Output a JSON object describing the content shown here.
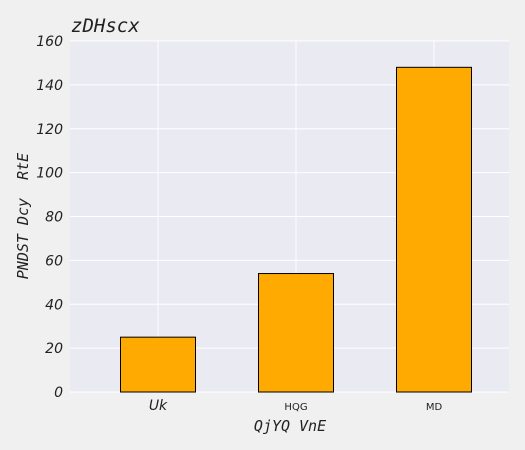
{
  "chart_data": {
    "type": "bar",
    "title": "zDHscx",
    "xlabel": "QjYQ VnE",
    "ylabel": "PNDST Dcy  RtE",
    "categories": [
      "Uk",
      "HQG",
      "MD"
    ],
    "values": [
      25,
      54,
      148
    ],
    "ylim": [
      0,
      160
    ],
    "yticks": [
      0,
      20,
      40,
      60,
      80,
      100,
      120,
      140,
      160
    ],
    "bar_color": "#ffaa00",
    "bar_edge_color": "#000000",
    "plot_background": "#eaeaf2",
    "grid_color": "#ffffff",
    "grid": true
  }
}
